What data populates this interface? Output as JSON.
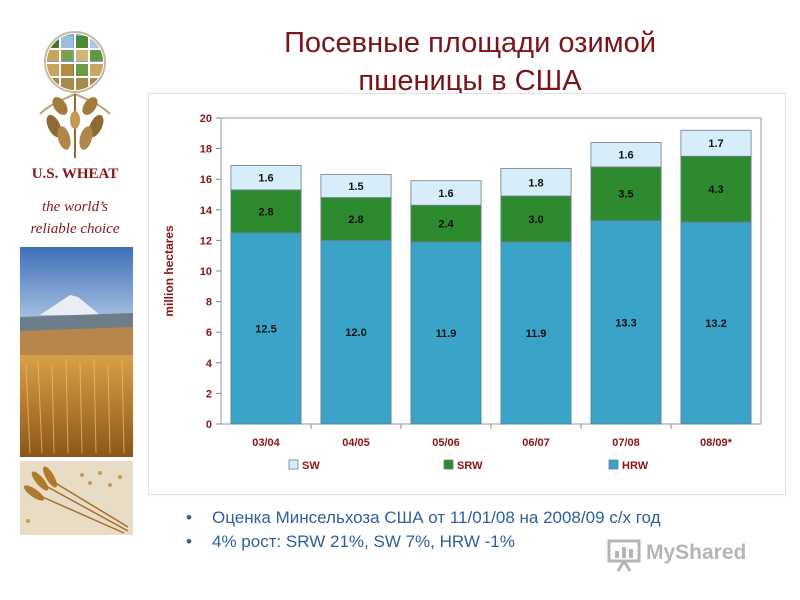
{
  "sidebar": {
    "brand": "U.S. WHEAT",
    "tagline_line1": "the world’s",
    "tagline_line2": "reliable choice"
  },
  "slide": {
    "title_line1": "Посевные площади озимой",
    "title_line2": "пшеницы в США"
  },
  "chart_data": {
    "type": "bar",
    "stacked": true,
    "categories": [
      "03/04",
      "04/05",
      "05/06",
      "06/07",
      "07/08",
      "08/09*"
    ],
    "series": [
      {
        "name": "HRW",
        "color": "#3aa3c8",
        "values": [
          12.5,
          12.0,
          11.9,
          11.9,
          13.3,
          13.2
        ]
      },
      {
        "name": "SRW",
        "color": "#2e8a2e",
        "values": [
          2.8,
          2.8,
          2.4,
          3.0,
          3.5,
          4.3
        ]
      },
      {
        "name": "SW",
        "color": "#d7eefa",
        "values": [
          1.6,
          1.5,
          1.6,
          1.8,
          1.6,
          1.7
        ]
      }
    ],
    "legend_order": [
      "SW",
      "SRW",
      "HRW"
    ],
    "ylabel": "million hectares",
    "xlabel": "",
    "ylim": [
      0,
      20
    ],
    "yticks": [
      0,
      2,
      4,
      6,
      8,
      10,
      12,
      14,
      16,
      18,
      20
    ],
    "ytick_labels": [
      "0",
      "2",
      "4",
      "6",
      "8",
      "10",
      "12",
      "14",
      "16",
      "18",
      "20"
    ],
    "data_labels": [
      [
        "12.5",
        "12.0",
        "11.9",
        "11.9",
        "13.3",
        "13.2"
      ],
      [
        "2.8",
        "2.8",
        "2.4",
        "3.0",
        "3.5",
        "4.3"
      ],
      [
        "1.6",
        "1.5",
        "1.6",
        "1.8",
        "1.6",
        "1.7"
      ]
    ],
    "grid": false,
    "legend_position": "bottom",
    "label_color": "#8a1414"
  },
  "bullets": [
    {
      "marker": "•",
      "text": "Оценка Минсельхоза США от 11/01/08 на 2008/09 с/х год"
    },
    {
      "marker": "•",
      "text": "4% рост: SRW 21%, SW 7%, HRW -1%"
    }
  ],
  "watermark": {
    "text": "MyShared",
    "icon": "presentation-screen-icon"
  }
}
